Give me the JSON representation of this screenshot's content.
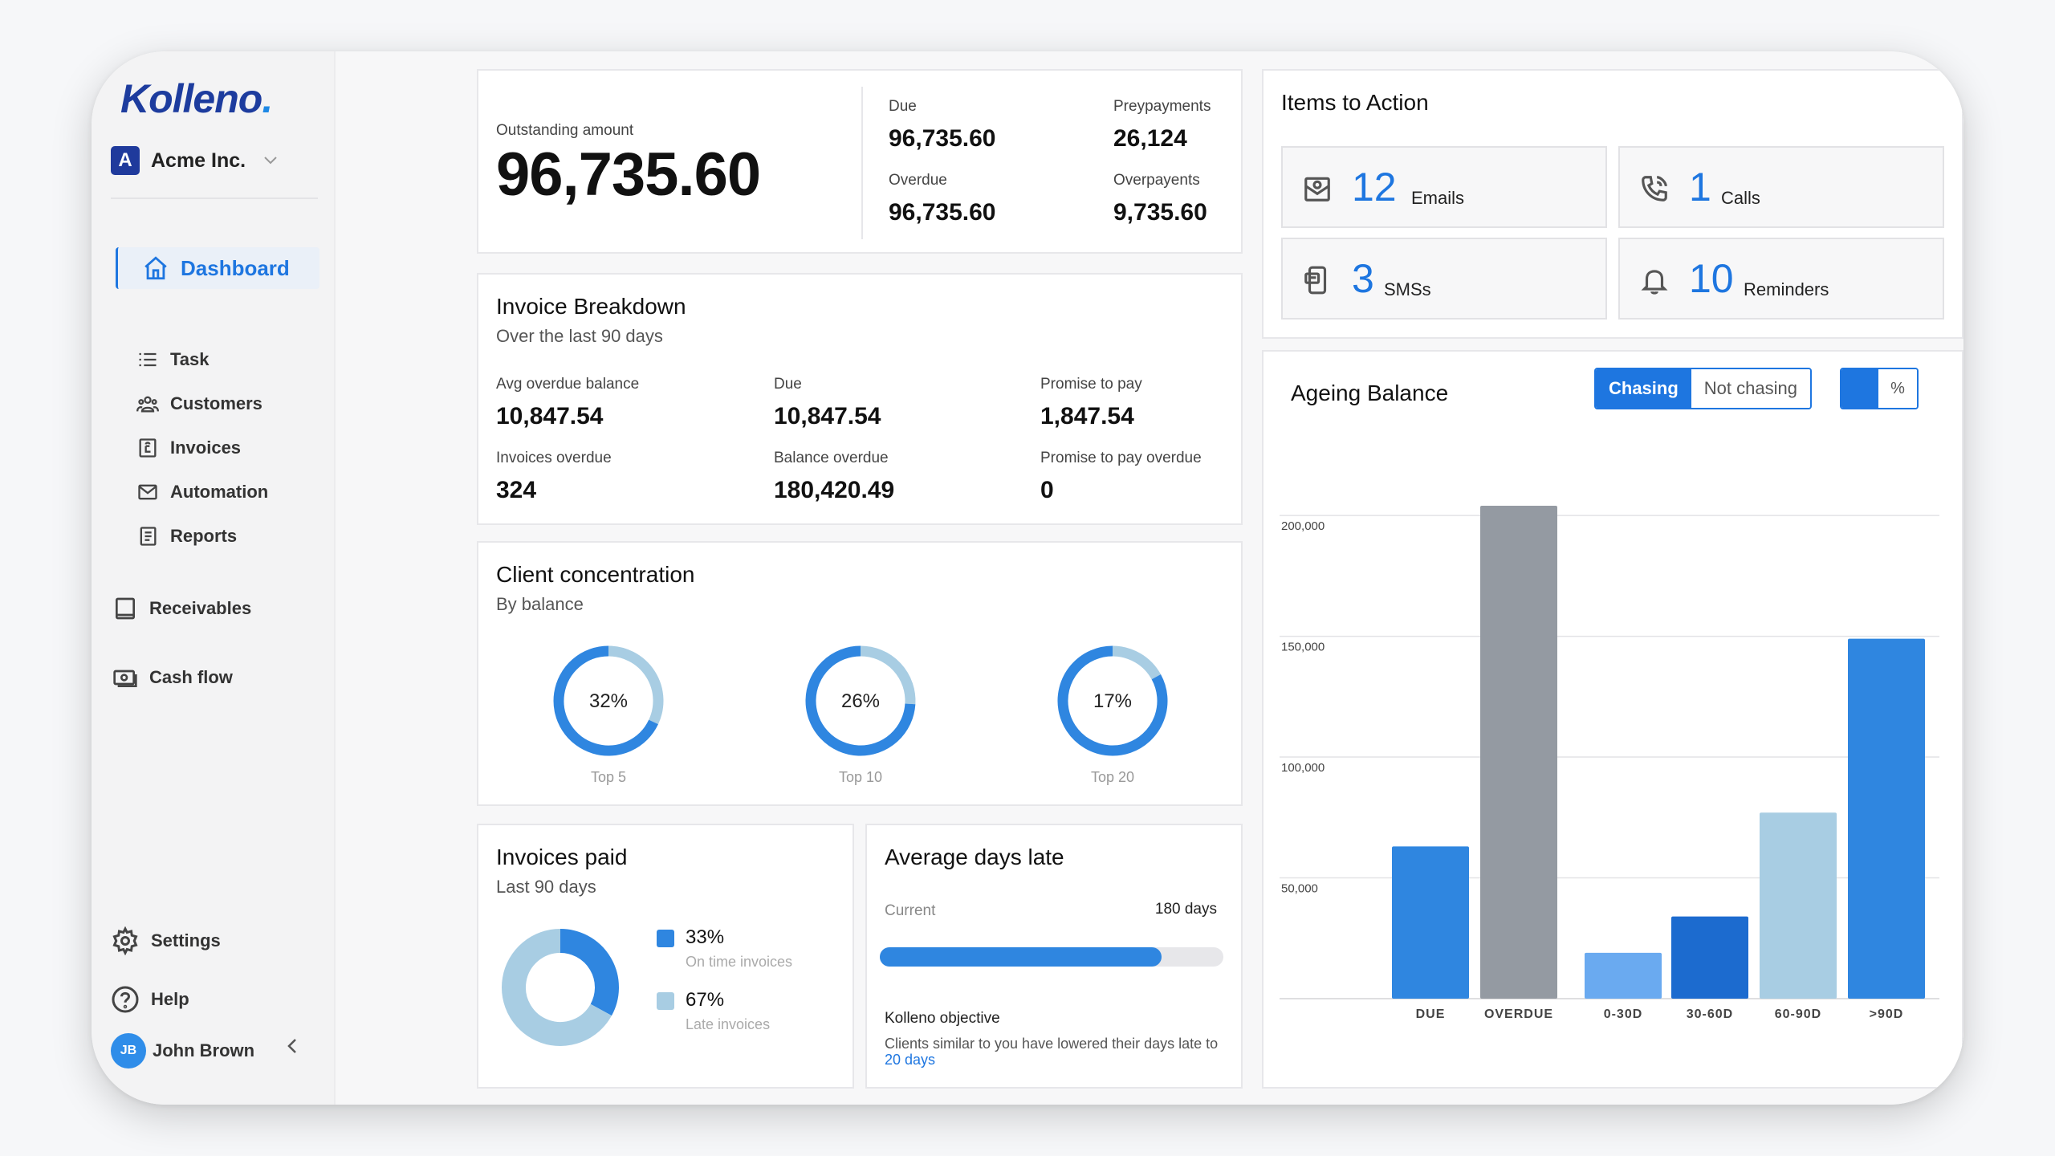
{
  "brand": {
    "logo_text": "Kolleno",
    "logo_dot": "."
  },
  "org": {
    "badge": "A",
    "name": "Acme Inc."
  },
  "nav": {
    "dashboard": "Dashboard",
    "task": "Task",
    "customers": "Customers",
    "invoices": "Invoices",
    "automation": "Automation",
    "reports": "Reports",
    "receivables": "Receivables",
    "cashflow": "Cash flow",
    "settings": "Settings",
    "help": "Help"
  },
  "user": {
    "initials": "JB",
    "name": "John Brown"
  },
  "summary": {
    "outstanding_label": "Outstanding amount",
    "outstanding_value": "96,735.60",
    "due_label": "Due",
    "due_value": "96,735.60",
    "prepayments_label": "Preypayments",
    "prepayments_value": "26,124",
    "overdue_label": "Overdue",
    "overdue_value": "96,735.60",
    "overpayments_label": "Overpayents",
    "overpayments_value": "9,735.60"
  },
  "items_to_action": {
    "title": "Items to Action",
    "emails_count": "12",
    "emails_label": "Emails",
    "calls_count": "1",
    "calls_label": "Calls",
    "sms_count": "3",
    "sms_label": "SMSs",
    "reminders_count": "10",
    "reminders_label": "Reminders"
  },
  "invoice_breakdown": {
    "title": "Invoice Breakdown",
    "subtitle": "Over the last 90 days",
    "avg_overdue_label": "Avg overdue balance",
    "avg_overdue_value": "10,847.54",
    "due_label": "Due",
    "due_value": "10,847.54",
    "promise_label": "Promise to pay",
    "promise_value": "1,847.54",
    "invoices_overdue_label": "Invoices overdue",
    "invoices_overdue_value": "324",
    "balance_overdue_label": "Balance overdue",
    "balance_overdue_value": "180,420.49",
    "promise_overdue_label": "Promise to pay overdue",
    "promise_overdue_value": "0"
  },
  "client_concentration": {
    "title": "Client concentration",
    "subtitle": "By balance",
    "items": [
      {
        "pct": "32%",
        "label": "Top 5",
        "value": 0.32
      },
      {
        "pct": "26%",
        "label": "Top 10",
        "value": 0.26
      },
      {
        "pct": "17%",
        "label": "Top 20",
        "value": 0.17
      }
    ]
  },
  "invoices_paid": {
    "title": "Invoices paid",
    "subtitle": "Last 90 days",
    "ontime_pct": "33%",
    "ontime_label": "On time invoices",
    "late_pct": "67%",
    "late_label": "Late invoices",
    "ontime_value": 0.33
  },
  "avg_days_late": {
    "title": "Average days late",
    "current_label": "Current",
    "current_value": "180 days",
    "progress": 0.82,
    "objective_title": "Kolleno objective",
    "objective_text": "Clients similar to you have lowered their days late to",
    "objective_link": "20 days"
  },
  "ageing": {
    "title": "Ageing Balance",
    "toggle_on": "Chasing",
    "toggle_off": "Not chasing",
    "unit_toggle": "%"
  },
  "colors": {
    "accent": "#1e76e0",
    "bar_blue": "#2f86e0",
    "bar_gray": "#949aa2",
    "bar_light": "#6aaaf0",
    "bar_dark": "#1c6bcf",
    "bar_pale": "#a8cde3",
    "donut_pale": "#a8cde3"
  },
  "chart_data": {
    "type": "bar",
    "categories": [
      "DUE",
      "OVERDUE",
      "0-30D",
      "30-60D",
      "60-90D",
      ">90D"
    ],
    "values": [
      63000,
      204000,
      19000,
      34000,
      77000,
      149000
    ],
    "yticks": [
      "200,000",
      "150,000",
      "100,000",
      "50,000"
    ],
    "ytick_values": [
      200000,
      150000,
      100000,
      50000
    ],
    "ylim": [
      0,
      210000
    ],
    "grid": true
  }
}
